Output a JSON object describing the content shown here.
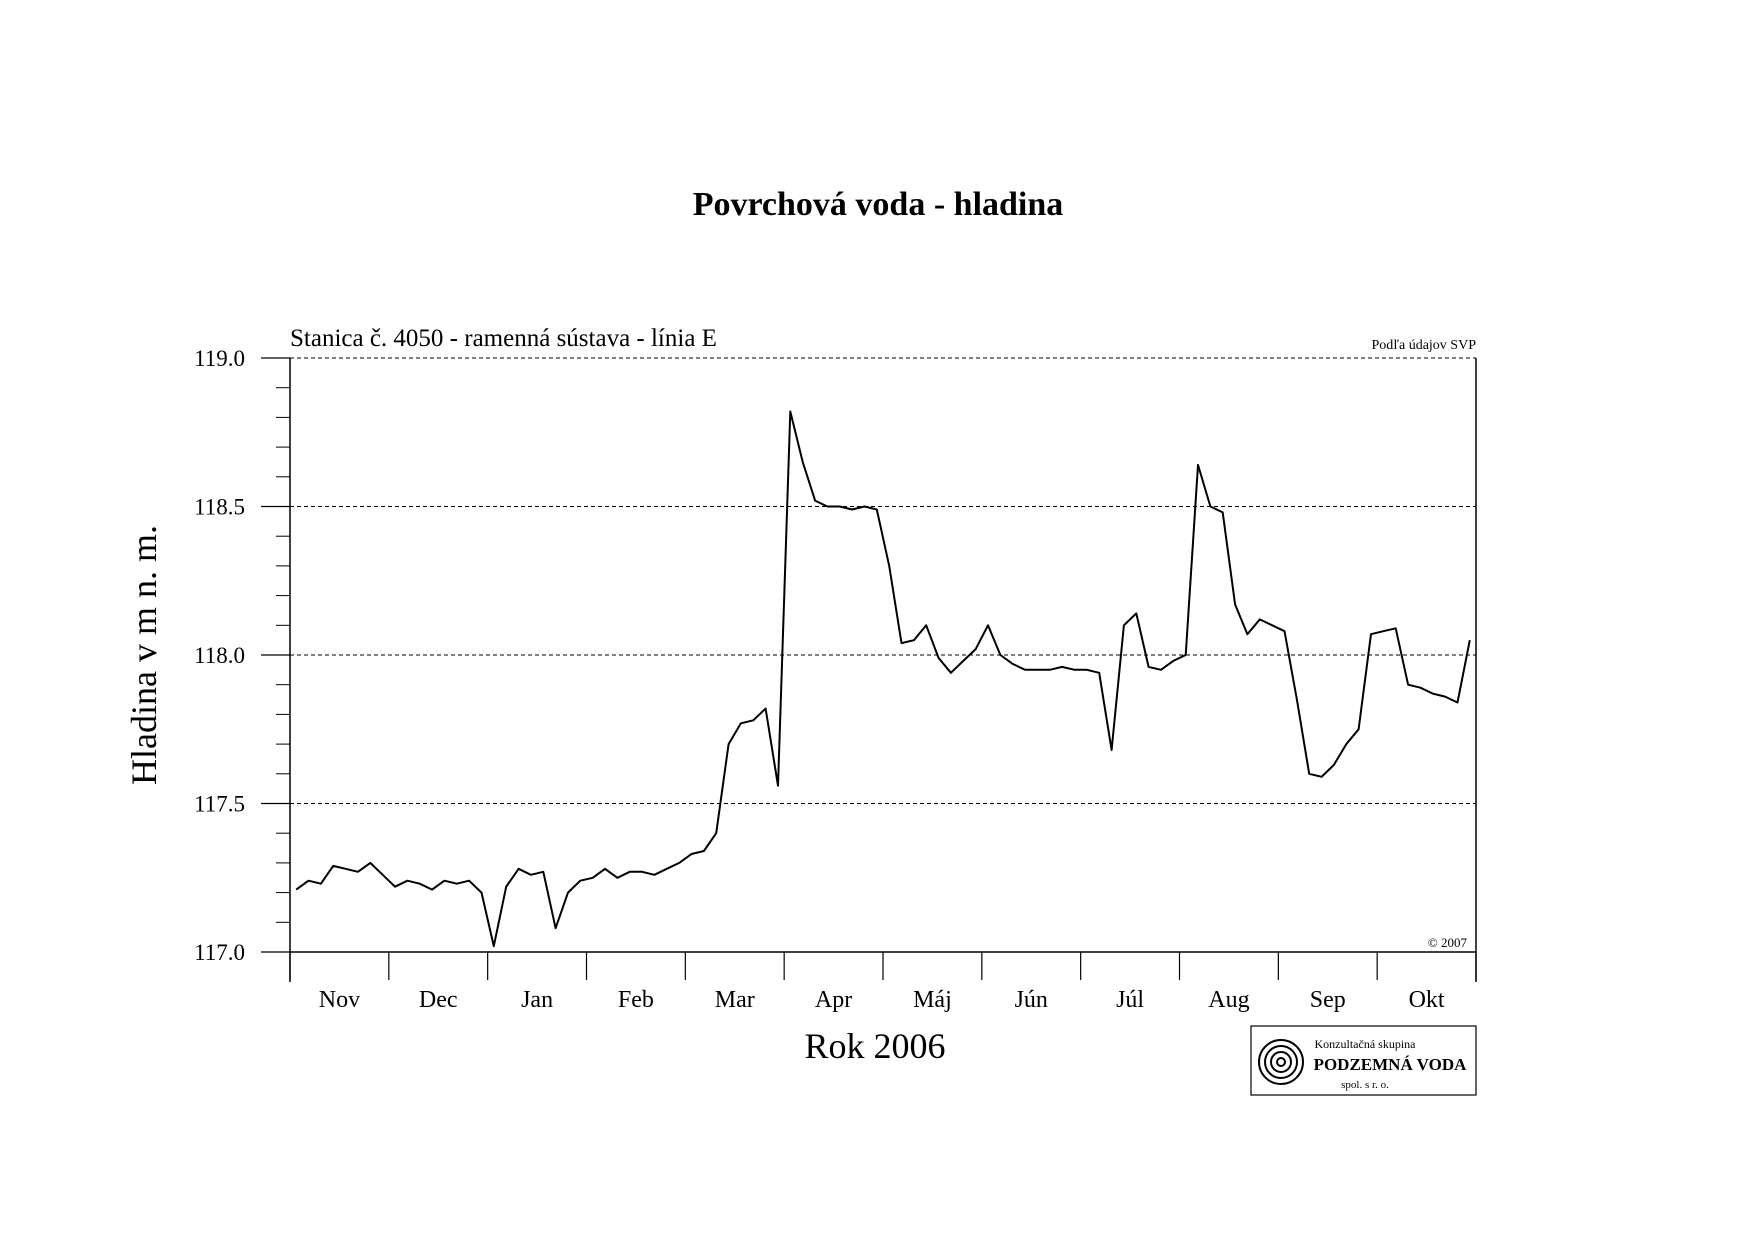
{
  "chart_data": {
    "type": "line",
    "title": "Povrchová voda - hladina",
    "subtitle": "Stanica č. 4050 - ramenná sústava - línia E",
    "source_note": "Podľa údajov SVP",
    "copyright": "© 2007",
    "y_label": "Hladina v m n. m.",
    "x_label": "Rok 2006",
    "logo": {
      "line1": "Konzultačná skupina",
      "line2": "PODZEMNÁ VODA",
      "line3": "spol. s r. o."
    },
    "categories": [
      "Nov",
      "Dec",
      "Jan",
      "Feb",
      "Mar",
      "Apr",
      "Máj",
      "Jún",
      "Júl",
      "Aug",
      "Sep",
      "Okt"
    ],
    "values": [
      [
        117.21,
        117.24,
        117.23,
        117.29,
        117.28,
        117.27,
        117.3,
        117.26
      ],
      [
        117.22,
        117.24,
        117.23,
        117.21,
        117.24,
        117.23,
        117.24,
        117.2
      ],
      [
        117.02,
        117.22,
        117.28,
        117.26,
        117.27,
        117.08,
        117.2,
        117.24
      ],
      [
        117.25,
        117.28,
        117.25,
        117.27,
        117.27,
        117.26,
        117.28,
        117.3
      ],
      [
        117.33,
        117.34,
        117.4,
        117.7,
        117.77,
        117.78,
        117.82,
        117.56
      ],
      [
        118.82,
        118.65,
        118.52,
        118.5,
        118.5,
        118.49,
        118.5,
        118.49
      ],
      [
        118.3,
        118.04,
        118.05,
        118.1,
        117.99,
        117.94,
        117.98,
        118.02
      ],
      [
        118.1,
        118.0,
        117.97,
        117.95,
        117.95,
        117.95,
        117.96,
        117.95
      ],
      [
        117.95,
        117.94,
        117.68,
        118.1,
        118.14,
        117.96,
        117.95,
        117.98
      ],
      [
        118.0,
        118.64,
        118.5,
        118.48,
        118.17,
        118.07,
        118.12,
        118.1
      ],
      [
        118.08,
        117.85,
        117.6,
        117.59,
        117.63,
        117.7,
        117.75,
        118.07
      ],
      [
        118.08,
        118.09,
        117.9,
        117.89,
        117.87,
        117.86,
        117.84,
        118.05
      ]
    ],
    "color": "#000000",
    "ylim": [
      117,
      119
    ],
    "yticks": [
      {
        "value": 117,
        "label": "117.0"
      },
      {
        "value": 117.5,
        "label": "117.5"
      },
      {
        "value": 118,
        "label": "118.0"
      },
      {
        "value": 118.5,
        "label": "118.5"
      },
      {
        "value": 119,
        "label": "119.0"
      }
    ],
    "yminorticks": [
      117.1,
      117.2,
      117.3,
      117.4,
      117.6,
      117.7,
      117.8,
      117.9,
      118.1,
      118.2,
      118.3,
      118.4,
      118.6,
      118.7,
      118.8,
      118.9
    ],
    "grid": true
  }
}
